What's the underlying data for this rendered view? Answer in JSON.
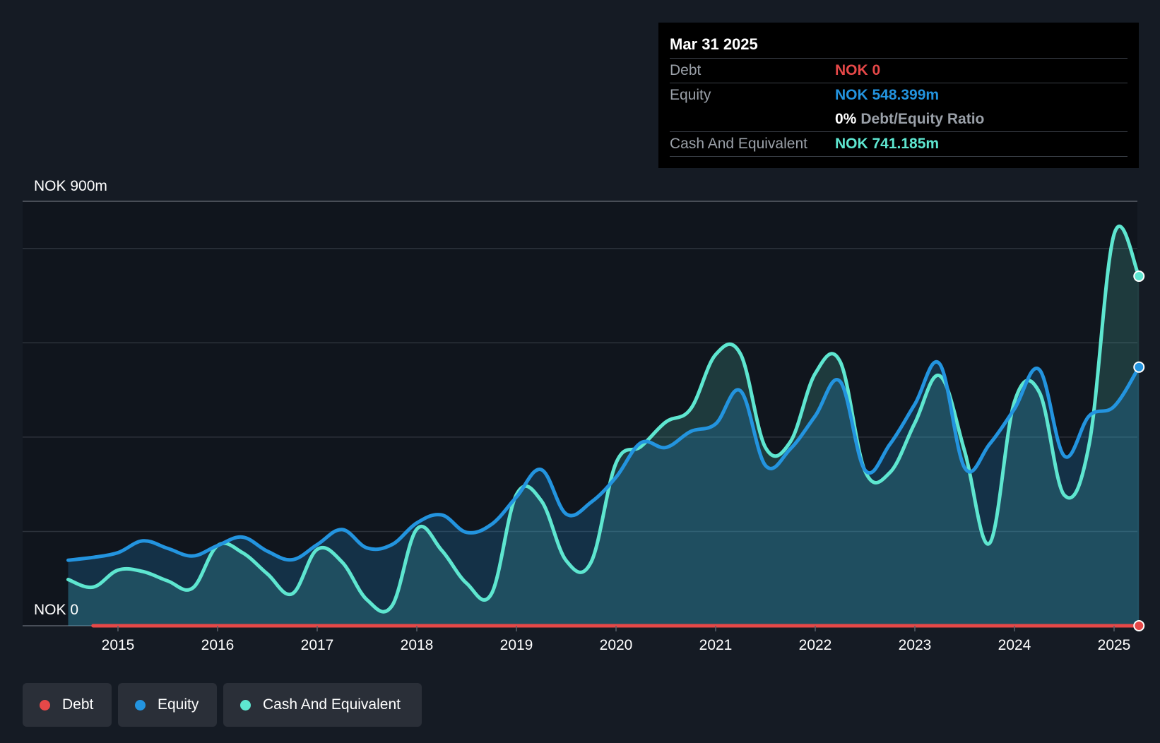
{
  "colors": {
    "background": "#151b24",
    "debt": "#e64848",
    "equity": "#2394df",
    "cash": "#5ee6d0"
  },
  "tooltip": {
    "date": "Mar 31 2025",
    "debt_label": "Debt",
    "debt_value": "NOK 0",
    "equity_label": "Equity",
    "equity_value": "NOK 548.399m",
    "ratio_pct": "0%",
    "ratio_label": "Debt/Equity Ratio",
    "cash_label": "Cash And Equivalent",
    "cash_value": "NOK 741.185m"
  },
  "legend": [
    {
      "label": "Debt",
      "color": "#e64848"
    },
    {
      "label": "Equity",
      "color": "#2394df"
    },
    {
      "label": "Cash And Equivalent",
      "color": "#5ee6d0"
    }
  ],
  "chart_data": {
    "type": "area",
    "ylim": [
      0,
      900
    ],
    "y_unit": "NOK m",
    "y_tick_labels": {
      "top": "NOK 900m",
      "bottom": "NOK 0"
    },
    "x_tick_labels": [
      "2015",
      "2016",
      "2017",
      "2018",
      "2019",
      "2020",
      "2021",
      "2022",
      "2023",
      "2024",
      "2025"
    ],
    "grid": true,
    "legend_position": "bottom-left",
    "series": [
      {
        "name": "Equity",
        "points": [
          [
            2014.5,
            139
          ],
          [
            2014.75,
            145
          ],
          [
            2015.0,
            155
          ],
          [
            2015.25,
            180
          ],
          [
            2015.5,
            164
          ],
          [
            2015.75,
            148
          ],
          [
            2016.0,
            170
          ],
          [
            2016.25,
            188
          ],
          [
            2016.5,
            158
          ],
          [
            2016.75,
            140
          ],
          [
            2017.0,
            172
          ],
          [
            2017.25,
            204
          ],
          [
            2017.5,
            165
          ],
          [
            2017.75,
            172
          ],
          [
            2018.0,
            218
          ],
          [
            2018.25,
            235
          ],
          [
            2018.5,
            198
          ],
          [
            2018.75,
            215
          ],
          [
            2019.0,
            273
          ],
          [
            2019.25,
            331
          ],
          [
            2019.5,
            237
          ],
          [
            2019.75,
            262
          ],
          [
            2020.0,
            315
          ],
          [
            2020.25,
            388
          ],
          [
            2020.5,
            378
          ],
          [
            2020.75,
            412
          ],
          [
            2021.0,
            428
          ],
          [
            2021.25,
            498
          ],
          [
            2021.5,
            340
          ],
          [
            2021.75,
            375
          ],
          [
            2022.0,
            445
          ],
          [
            2022.25,
            518
          ],
          [
            2022.5,
            330
          ],
          [
            2022.75,
            385
          ],
          [
            2023.0,
            470
          ],
          [
            2023.25,
            555
          ],
          [
            2023.5,
            335
          ],
          [
            2023.75,
            385
          ],
          [
            2024.0,
            460
          ],
          [
            2024.25,
            543
          ],
          [
            2024.5,
            360
          ],
          [
            2024.75,
            445
          ],
          [
            2025.0,
            465
          ],
          [
            2025.25,
            548.399
          ]
        ]
      },
      {
        "name": "Cash And Equivalent",
        "points": [
          [
            2014.5,
            98
          ],
          [
            2014.75,
            82
          ],
          [
            2015.0,
            118
          ],
          [
            2015.25,
            115
          ],
          [
            2015.5,
            95
          ],
          [
            2015.75,
            80
          ],
          [
            2016.0,
            170
          ],
          [
            2016.25,
            155
          ],
          [
            2016.5,
            110
          ],
          [
            2016.75,
            68
          ],
          [
            2017.0,
            162
          ],
          [
            2017.25,
            135
          ],
          [
            2017.5,
            55
          ],
          [
            2017.75,
            42
          ],
          [
            2018.0,
            205
          ],
          [
            2018.25,
            160
          ],
          [
            2018.5,
            90
          ],
          [
            2018.75,
            68
          ],
          [
            2019.0,
            278
          ],
          [
            2019.25,
            265
          ],
          [
            2019.5,
            138
          ],
          [
            2019.75,
            135
          ],
          [
            2020.0,
            345
          ],
          [
            2020.25,
            380
          ],
          [
            2020.5,
            432
          ],
          [
            2020.75,
            460
          ],
          [
            2021.0,
            575
          ],
          [
            2021.25,
            576
          ],
          [
            2021.5,
            378
          ],
          [
            2021.75,
            390
          ],
          [
            2022.0,
            535
          ],
          [
            2022.25,
            560
          ],
          [
            2022.5,
            328
          ],
          [
            2022.75,
            325
          ],
          [
            2023.0,
            430
          ],
          [
            2023.25,
            530
          ],
          [
            2023.5,
            370
          ],
          [
            2023.75,
            175
          ],
          [
            2024.0,
            475
          ],
          [
            2024.25,
            495
          ],
          [
            2024.5,
            277
          ],
          [
            2024.75,
            385
          ],
          [
            2025.0,
            830
          ],
          [
            2025.25,
            741.185
          ]
        ]
      },
      {
        "name": "Debt",
        "points": [
          [
            2014.75,
            0
          ],
          [
            2025.25,
            0
          ]
        ]
      }
    ]
  }
}
